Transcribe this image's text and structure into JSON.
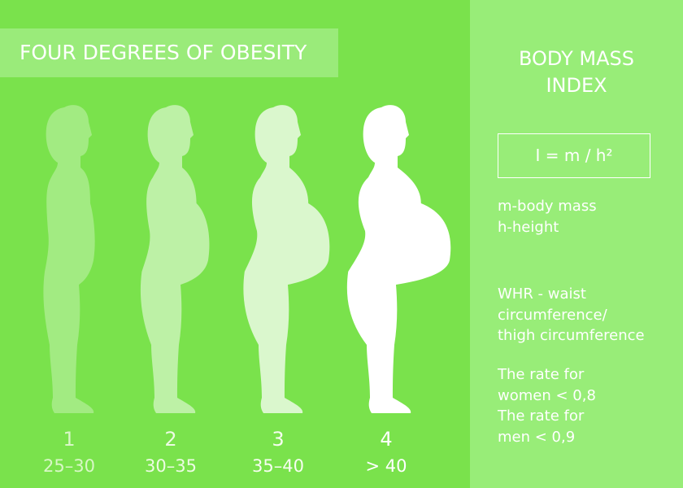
{
  "header": {
    "title": "FOUR DEGREES OF OBESITY"
  },
  "degrees": [
    {
      "number": "1",
      "range": "25–30"
    },
    {
      "number": "2",
      "range": "30–35"
    },
    {
      "number": "3",
      "range": "35–40"
    },
    {
      "number": "4",
      "range": "> 40"
    }
  ],
  "sidebar": {
    "title_lines": [
      "BODY MASS",
      "INDEX"
    ],
    "formula": "I = m / h²",
    "definitions": [
      "m-body mass",
      "h-height"
    ],
    "whr_lines": [
      "WHR - waist",
      "circumference/",
      "thigh circumference"
    ],
    "rate_lines": [
      "The rate for",
      "women < 0,8",
      "The rate for",
      "men < 0,9"
    ]
  }
}
